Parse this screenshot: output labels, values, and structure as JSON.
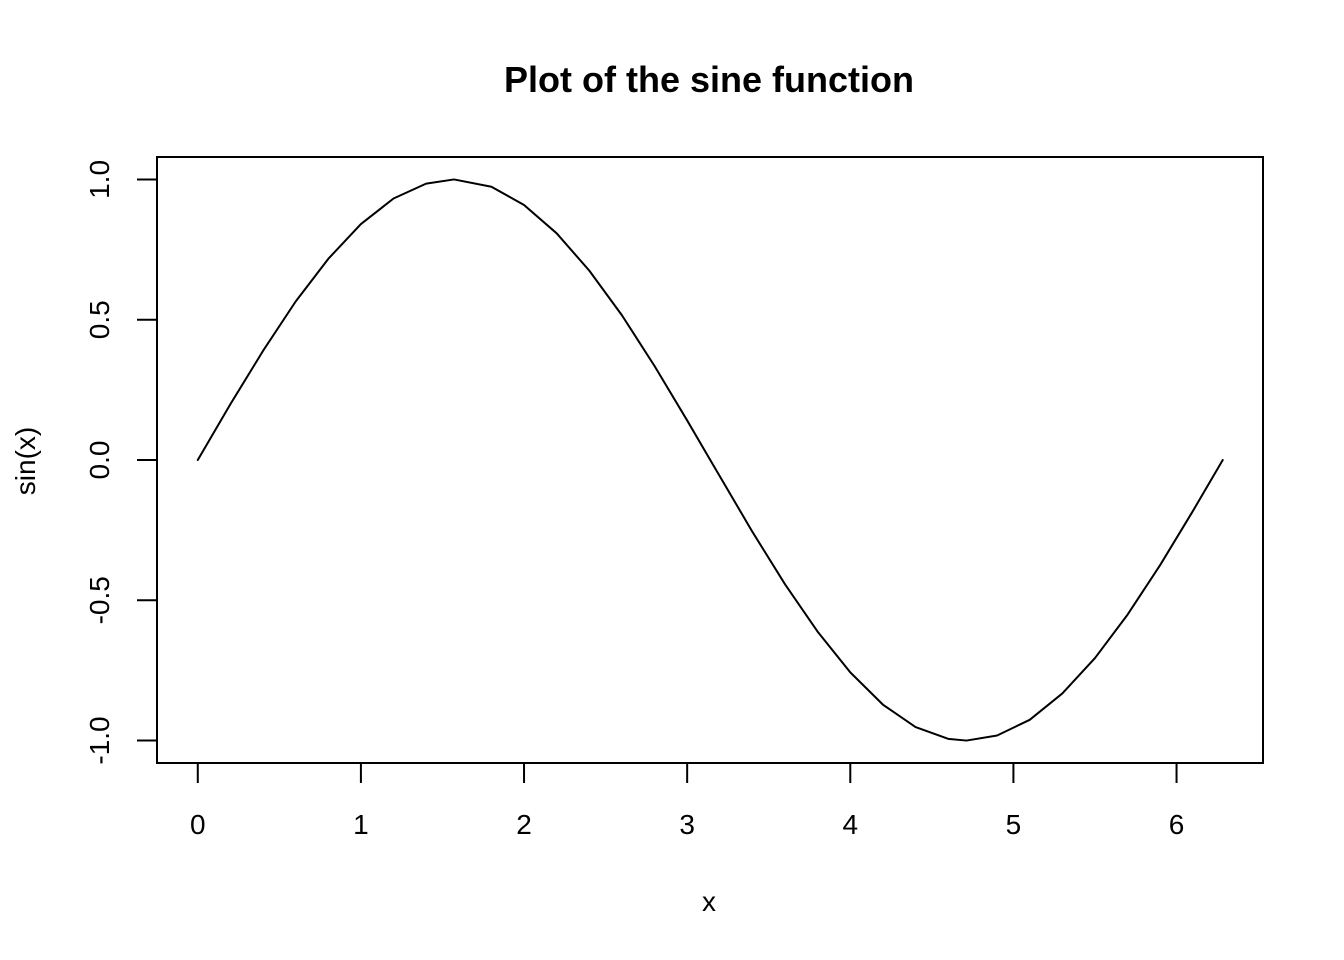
{
  "chart_data": {
    "type": "line",
    "title": "Plot of the sine function",
    "xlabel": "x",
    "ylabel": "sin(x)",
    "xlim": [
      -0.25,
      6.53
    ],
    "ylim": [
      -1.08,
      1.08
    ],
    "x_ticks": [
      0,
      1,
      2,
      3,
      4,
      5,
      6
    ],
    "x_tick_labels": [
      "0",
      "1",
      "2",
      "3",
      "4",
      "5",
      "6"
    ],
    "y_ticks": [
      -1.0,
      -0.5,
      0.0,
      0.5,
      1.0
    ],
    "y_tick_labels": [
      "-1.0",
      "-0.5",
      "0.0",
      "0.5",
      "1.0"
    ],
    "grid": false,
    "legend": "none",
    "series": [
      {
        "color": "#000000",
        "x": [
          0,
          0.2,
          0.4,
          0.6,
          0.8,
          1.0,
          1.2,
          1.4,
          1.5708,
          1.8,
          2.0,
          2.2,
          2.4,
          2.6,
          2.8,
          3.0,
          3.1416,
          3.4,
          3.6,
          3.8,
          4.0,
          4.2,
          4.4,
          4.6,
          4.7124,
          4.9,
          5.1,
          5.3,
          5.5,
          5.7,
          5.9,
          6.1,
          6.2832
        ],
        "y": [
          0.0,
          0.199,
          0.389,
          0.565,
          0.717,
          0.841,
          0.932,
          0.985,
          1.0,
          0.974,
          0.909,
          0.808,
          0.675,
          0.516,
          0.335,
          0.141,
          0.0,
          -0.256,
          -0.443,
          -0.612,
          -0.757,
          -0.872,
          -0.952,
          -0.994,
          -1.0,
          -0.982,
          -0.926,
          -0.832,
          -0.706,
          -0.551,
          -0.374,
          -0.182,
          0.0
        ]
      }
    ]
  }
}
